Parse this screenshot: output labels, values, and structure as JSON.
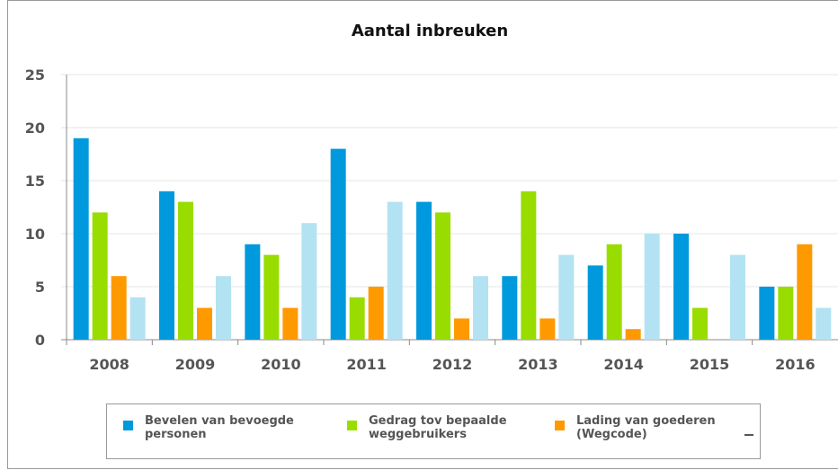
{
  "chart_data": {
    "type": "bar",
    "title": "Aantal inbreuken",
    "categories": [
      "2008",
      "2009",
      "2010",
      "2011",
      "2012",
      "2013",
      "2014",
      "2015",
      "2016"
    ],
    "series": [
      {
        "name": "Bevelen van bevoegde personen",
        "color": "#0099dd",
        "values": [
          19,
          14,
          9,
          18,
          13,
          6,
          7,
          10,
          5
        ]
      },
      {
        "name": "Gedrag tov bepaalde weggebruikers",
        "color": "#99dd00",
        "values": [
          12,
          13,
          8,
          4,
          12,
          14,
          9,
          3,
          5
        ]
      },
      {
        "name": "Lading van goederen (Wegcode)",
        "color": "#ff9900",
        "values": [
          6,
          3,
          3,
          5,
          2,
          2,
          1,
          0,
          9
        ]
      },
      {
        "color": "#b3e3f3",
        "values": [
          4,
          6,
          11,
          13,
          6,
          8,
          10,
          8,
          3
        ]
      }
    ],
    "ylim": [
      0,
      25
    ],
    "yticks": [
      0,
      5,
      10,
      15,
      20,
      25
    ],
    "grid": true,
    "legend": "bottom"
  }
}
